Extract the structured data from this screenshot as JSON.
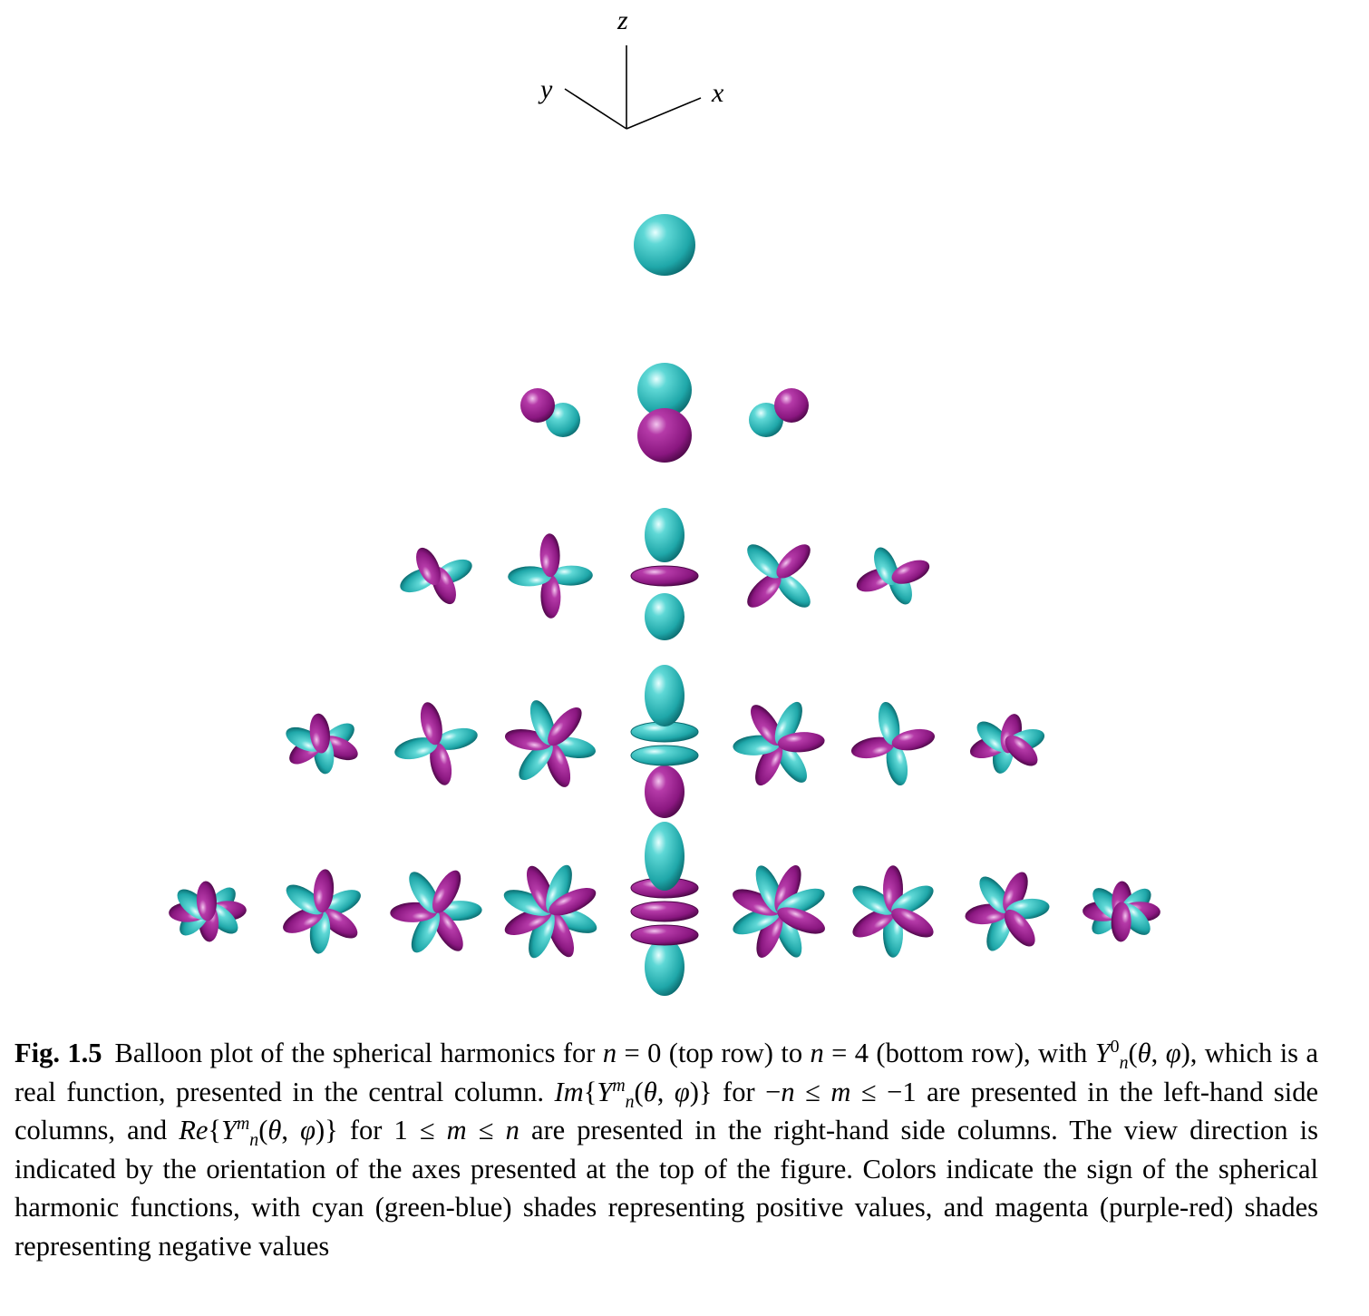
{
  "axes": {
    "z": "z",
    "y": "y",
    "x": "x"
  },
  "colors": {
    "positive": "#2bb9b9",
    "negative": "#9b1f8e"
  },
  "rows": [
    {
      "n": 0,
      "cells": [
        {
          "m": 0,
          "type": "sphere"
        }
      ]
    },
    {
      "n": 1,
      "cells": [
        {
          "m": -1,
          "type": "pair"
        },
        {
          "m": 0,
          "type": "dipole"
        },
        {
          "m": 1,
          "type": "pair"
        }
      ]
    },
    {
      "n": 2,
      "cells": [
        {
          "m": -2
        },
        {
          "m": -1
        },
        {
          "m": 0,
          "type": "axial"
        },
        {
          "m": 1
        },
        {
          "m": 2
        }
      ]
    },
    {
      "n": 3,
      "cells": [
        {
          "m": -3
        },
        {
          "m": -2
        },
        {
          "m": -1
        },
        {
          "m": 0,
          "type": "axial"
        },
        {
          "m": 1
        },
        {
          "m": 2
        },
        {
          "m": 3
        }
      ]
    },
    {
      "n": 4,
      "cells": [
        {
          "m": -4
        },
        {
          "m": -3
        },
        {
          "m": -2
        },
        {
          "m": -1
        },
        {
          "m": 0,
          "type": "axial"
        },
        {
          "m": 1
        },
        {
          "m": 2
        },
        {
          "m": 3
        },
        {
          "m": 4
        }
      ]
    }
  ],
  "caption": {
    "label": "Fig. 1.5",
    "text": "Balloon plot of the spherical harmonics for n = 0 (top row) to n = 4 (bottom row), with Y_n^0(θ, φ), which is a real function, presented in the central column. Im{Y_n^m(θ, φ)} for −n ≤ m ≤ −1 are presented in the left-hand side columns, and Re{Y_n^m(θ, φ)} for 1 ≤ m ≤ n are presented in the right-hand side columns. The view direction is indicated by the orientation of the axes presented at the top of the figure. Colors indicate the sign of the spherical harmonic functions, with cyan (green-blue) shades representing positive values, and magenta (purple-red) shades representing negative values"
  }
}
